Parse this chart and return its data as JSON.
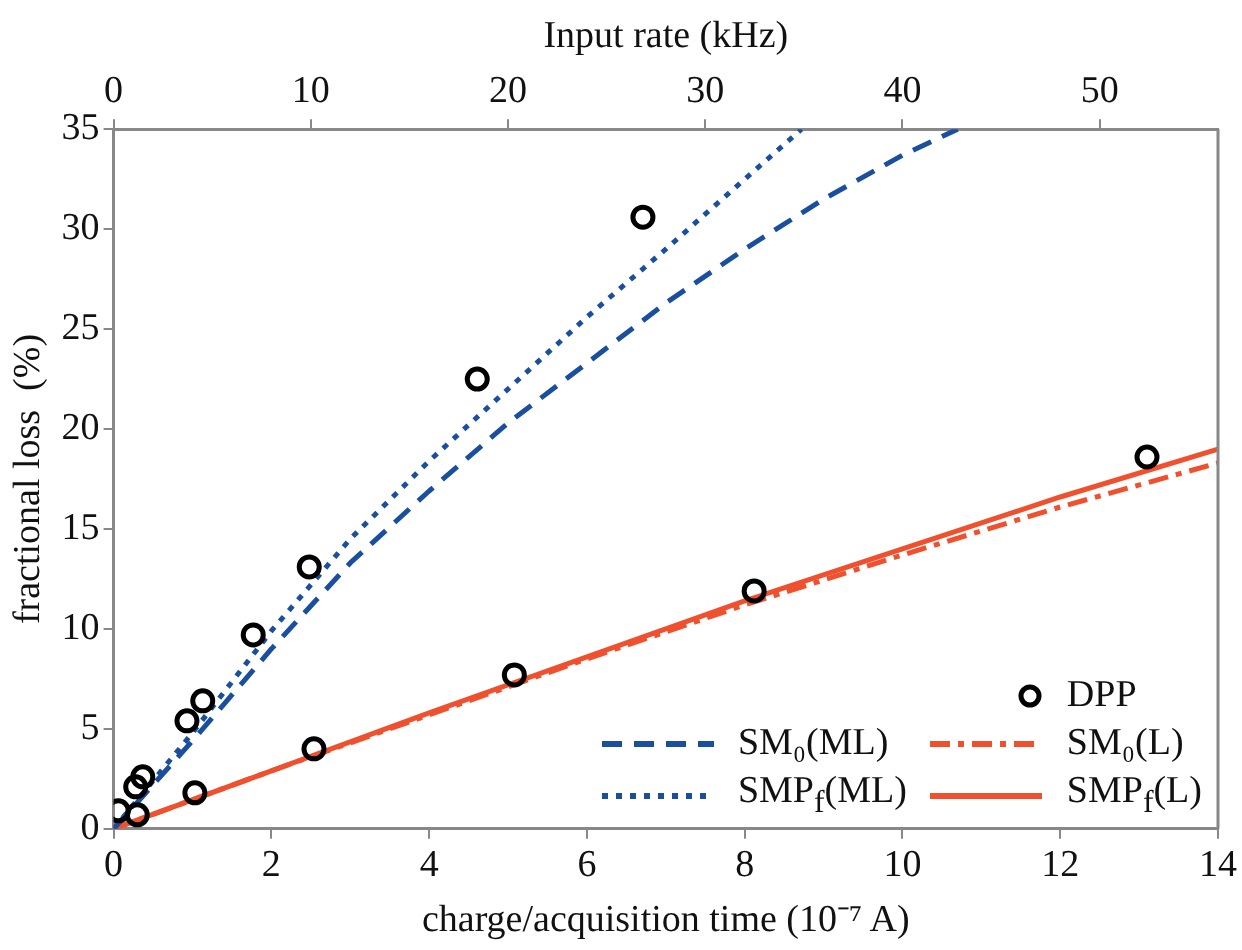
{
  "chart_data": {
    "type": "line",
    "xlabel": "charge/acquisition time (10⁻⁷ A)",
    "ylabel": "fractional loss  (%)",
    "x2label": "Input rate (kHz)",
    "xlim": [
      0,
      14
    ],
    "xticks": [
      0,
      2,
      4,
      6,
      8,
      10,
      12,
      14
    ],
    "ylim": [
      0,
      35
    ],
    "yticks": [
      0,
      5,
      10,
      15,
      20,
      25,
      30,
      35
    ],
    "x2lim": [
      0,
      56
    ],
    "x2ticks": [
      0,
      10,
      20,
      30,
      40,
      50
    ],
    "grid": false,
    "legend": "bottom right",
    "series": [
      {
        "name": "DPP",
        "type": "scatter",
        "marker": "circle",
        "color": "#000000",
        "x": [
          0.06,
          0.3,
          0.28,
          0.37,
          0.93,
          1.03,
          1.13,
          1.77,
          2.48,
          2.54,
          4.61,
          5.08,
          6.71,
          8.12,
          13.1
        ],
        "values": [
          0.9,
          0.7,
          2.1,
          2.6,
          5.4,
          1.8,
          6.4,
          9.7,
          13.1,
          4.0,
          22.5,
          7.7,
          30.6,
          11.9,
          18.6
        ]
      },
      {
        "name": "SM₀(ML)",
        "line_style": "dashed",
        "color": "#1a4fa0",
        "x": [
          0,
          1,
          2,
          3,
          4,
          5,
          6,
          7,
          8,
          9,
          10,
          10.7
        ],
        "values": [
          0,
          4.4,
          9.0,
          13.3,
          16.9,
          20.3,
          23.3,
          26.3,
          29.0,
          31.5,
          33.7,
          35
        ]
      },
      {
        "name": "SMP$_{f}$(ML)",
        "line_style": "dotted",
        "color": "#1a4fa0",
        "x": [
          0,
          1,
          2,
          3,
          4,
          5,
          6,
          7,
          8,
          8.72
        ],
        "values": [
          0,
          4.8,
          9.9,
          14.5,
          18.4,
          22.0,
          25.6,
          29.0,
          32.5,
          35
        ]
      },
      {
        "name": "SM₀(L)",
        "line_style": "dashdot",
        "color": "#f0502e",
        "x": [
          0,
          2,
          4,
          6,
          8,
          10,
          12,
          14
        ],
        "values": [
          0,
          2.9,
          5.7,
          8.5,
          11.2,
          13.7,
          16.1,
          18.3
        ]
      },
      {
        "name": "SMP$_{f}$(L)",
        "line_style": "solid",
        "color": "#f0502e",
        "x": [
          0,
          2,
          4,
          6,
          8,
          10,
          12,
          14
        ],
        "values": [
          0,
          2.9,
          5.8,
          8.6,
          11.4,
          14.0,
          16.6,
          19.0
        ]
      }
    ]
  }
}
